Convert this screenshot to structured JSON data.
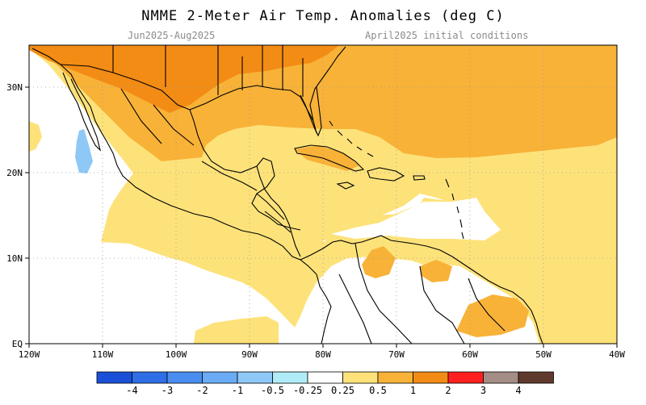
{
  "header": {
    "title": "NMME 2-Meter Air Temp. Anomalies (deg C)",
    "subtitle_left": "Jun2025-Aug2025",
    "subtitle_right": "April2025 initial conditions"
  },
  "axes": {
    "lon_labels": [
      "120W",
      "110W",
      "100W",
      "90W",
      "80W",
      "70W",
      "60W",
      "50W",
      "40W"
    ],
    "lat_labels": [
      "EQ",
      "10N",
      "20N",
      "30N"
    ]
  },
  "colorbar": {
    "colors": [
      "#1a4fd8",
      "#2f6ee6",
      "#4a8df0",
      "#6aabf5",
      "#8ec8f7",
      "#b0ecf7",
      "#ffffff",
      "#fde27a",
      "#f8b238",
      "#f38c14",
      "#ff1f1f",
      "#a48d85",
      "#603a2c"
    ],
    "labels": [
      "-4",
      "-3",
      "-2",
      "-1",
      "-0.5",
      "-0.25",
      "0.25",
      "0.5",
      "1",
      "2",
      "3",
      "4"
    ]
  },
  "legend_colors": {
    "light_yellow": "#fde27a",
    "light_orange": "#f8b238",
    "orange": "#f38c14",
    "light_blue": "#8ec8f7"
  }
}
